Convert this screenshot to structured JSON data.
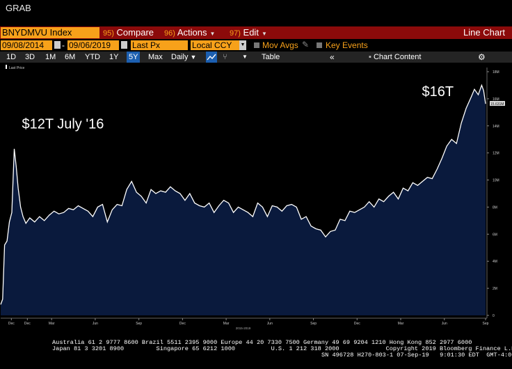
{
  "window": {
    "title": "GRAB"
  },
  "toolbar": {
    "ticker": "BNYDMVU Index",
    "compare": {
      "num": "95)",
      "label": "Compare"
    },
    "actions": {
      "num": "96)",
      "label": "Actions"
    },
    "edit": {
      "num": "97)",
      "label": "Edit"
    },
    "view_title": "Line Chart"
  },
  "settings": {
    "start_date": "09/08/2014",
    "date_sep": "-",
    "end_date": "09/06/2019",
    "field": "Last Px",
    "currency": "Local CCY",
    "mov_avgs": "Mov Avgs",
    "key_events": "Key Events"
  },
  "ranges": {
    "items": [
      "1D",
      "3D",
      "1M",
      "6M",
      "YTD",
      "1Y",
      "5Y",
      "Max"
    ],
    "active": "5Y",
    "frequency": "Daily",
    "table": "Table",
    "chart_content": "Chart Content"
  },
  "chart_data": {
    "type": "area",
    "legend": "Last Price",
    "fill_color": "#0a1a3d",
    "line_color": "#ffffff",
    "ylim": [
      0,
      18
    ],
    "y_ticks": [
      {
        "v": 0,
        "label": "0"
      },
      {
        "v": 2,
        "label": "2M"
      },
      {
        "v": 4,
        "label": "4M"
      },
      {
        "v": 6,
        "label": "6M"
      },
      {
        "v": 8,
        "label": "8M"
      },
      {
        "v": 10,
        "label": "10M"
      },
      {
        "v": 12,
        "label": "12M"
      },
      {
        "v": 14,
        "label": "14M"
      },
      {
        "v": 16,
        "label": "16M"
      },
      {
        "v": 18,
        "label": "18M"
      }
    ],
    "last_value_label": "15.631M",
    "last_value": 15.631,
    "xlim": [
      0,
      100
    ],
    "x_ticks": [
      {
        "x": 2.2,
        "label": "Dec"
      },
      {
        "x": 5.5,
        "label": "Dec"
      },
      {
        "x": 10.5,
        "label": "Mar"
      },
      {
        "x": 19.5,
        "label": "Jun"
      },
      {
        "x": 28.5,
        "label": "Sep"
      },
      {
        "x": 37.5,
        "label": "Dec"
      },
      {
        "x": 46.5,
        "label": "Mar"
      },
      {
        "x": 55.5,
        "label": "Jun"
      },
      {
        "x": 64.5,
        "label": "Sep"
      },
      {
        "x": 73.5,
        "label": "Dec"
      },
      {
        "x": 82.5,
        "label": "Mar"
      },
      {
        "x": 91.5,
        "label": "Jun"
      },
      {
        "x": 100,
        "label": "Sep"
      }
    ],
    "x_sublabel": "2015-2019",
    "points": [
      [
        0,
        0.8
      ],
      [
        0.4,
        1.2
      ],
      [
        0.8,
        5.2
      ],
      [
        1.3,
        5.5
      ],
      [
        1.8,
        6.9
      ],
      [
        2.3,
        7.6
      ],
      [
        2.8,
        12.3
      ],
      [
        3.2,
        11.0
      ],
      [
        3.6,
        9.4
      ],
      [
        4.1,
        8.0
      ],
      [
        4.6,
        7.3
      ],
      [
        5.2,
        6.8
      ],
      [
        6,
        7.2
      ],
      [
        7,
        6.9
      ],
      [
        8,
        7.3
      ],
      [
        9,
        7.0
      ],
      [
        10,
        7.4
      ],
      [
        11,
        7.7
      ],
      [
        12,
        7.5
      ],
      [
        13,
        7.6
      ],
      [
        14,
        7.9
      ],
      [
        15,
        7.8
      ],
      [
        16,
        8.1
      ],
      [
        17,
        7.9
      ],
      [
        18,
        7.7
      ],
      [
        19,
        7.3
      ],
      [
        20,
        8.0
      ],
      [
        21,
        8.2
      ],
      [
        22,
        6.9
      ],
      [
        23,
        7.8
      ],
      [
        24,
        8.2
      ],
      [
        25,
        8.1
      ],
      [
        26,
        9.3
      ],
      [
        27,
        9.9
      ],
      [
        28,
        9.1
      ],
      [
        29,
        8.8
      ],
      [
        30,
        8.3
      ],
      [
        31,
        9.3
      ],
      [
        32,
        9.0
      ],
      [
        33,
        9.2
      ],
      [
        34,
        9.1
      ],
      [
        35,
        9.5
      ],
      [
        36,
        9.2
      ],
      [
        37,
        9.0
      ],
      [
        38,
        8.5
      ],
      [
        39,
        9.0
      ],
      [
        40,
        8.3
      ],
      [
        41,
        8.1
      ],
      [
        42,
        8.0
      ],
      [
        43,
        8.3
      ],
      [
        44,
        7.6
      ],
      [
        45,
        8.1
      ],
      [
        46,
        8.5
      ],
      [
        47,
        8.3
      ],
      [
        48,
        7.6
      ],
      [
        49,
        8.0
      ],
      [
        50,
        7.8
      ],
      [
        51,
        7.6
      ],
      [
        52,
        7.3
      ],
      [
        53,
        8.3
      ],
      [
        54,
        8.0
      ],
      [
        55,
        7.3
      ],
      [
        56,
        8.1
      ],
      [
        57,
        8.0
      ],
      [
        58,
        7.7
      ],
      [
        59,
        8.1
      ],
      [
        60,
        8.2
      ],
      [
        61,
        8.0
      ],
      [
        62,
        7.1
      ],
      [
        63,
        7.3
      ],
      [
        64,
        6.6
      ],
      [
        65,
        6.4
      ],
      [
        66,
        6.3
      ],
      [
        67,
        5.8
      ],
      [
        68,
        6.2
      ],
      [
        69,
        6.3
      ],
      [
        70,
        7.1
      ],
      [
        71,
        7.0
      ],
      [
        72,
        7.7
      ],
      [
        73,
        7.6
      ],
      [
        74,
        7.8
      ],
      [
        75,
        8.0
      ],
      [
        76,
        8.4
      ],
      [
        77,
        8.0
      ],
      [
        78,
        8.6
      ],
      [
        79,
        8.4
      ],
      [
        80,
        8.8
      ],
      [
        81,
        9.1
      ],
      [
        82,
        8.6
      ],
      [
        83,
        9.4
      ],
      [
        84,
        9.2
      ],
      [
        85,
        9.8
      ],
      [
        86,
        9.6
      ],
      [
        87,
        9.9
      ],
      [
        88,
        10.2
      ],
      [
        89,
        10.1
      ],
      [
        90,
        10.8
      ],
      [
        91,
        11.6
      ],
      [
        92,
        12.5
      ],
      [
        93,
        13.0
      ],
      [
        94,
        12.7
      ],
      [
        95,
        14.2
      ],
      [
        96,
        15.3
      ],
      [
        97,
        16.1
      ],
      [
        97.7,
        16.7
      ],
      [
        98.5,
        16.3
      ],
      [
        99.2,
        17.0
      ],
      [
        99.6,
        16.6
      ],
      [
        100,
        15.63
      ]
    ],
    "annotations": [
      {
        "text": "$12T July '16",
        "x": 1.5,
        "y": 13.8
      },
      {
        "text": "$16T",
        "x": 84,
        "y": 16.2
      }
    ]
  },
  "footer": {
    "line1": "Australia 61 2 9777 8600 Brazil 5511 2395 9000 Europe 44 20 7330 7500 Germany 49 69 9204 1210 Hong Kong 852 2977 6000",
    "line2": "Japan 81 3 3201 8900         Singapore 65 6212 1000          U.S. 1 212 318 2000             Copyright 2019 Bloomberg Finance L.P.",
    "line3": "SN 496728 H270-803-1 07-Sep-19   9:01:30 EDT  GMT-4:00"
  }
}
